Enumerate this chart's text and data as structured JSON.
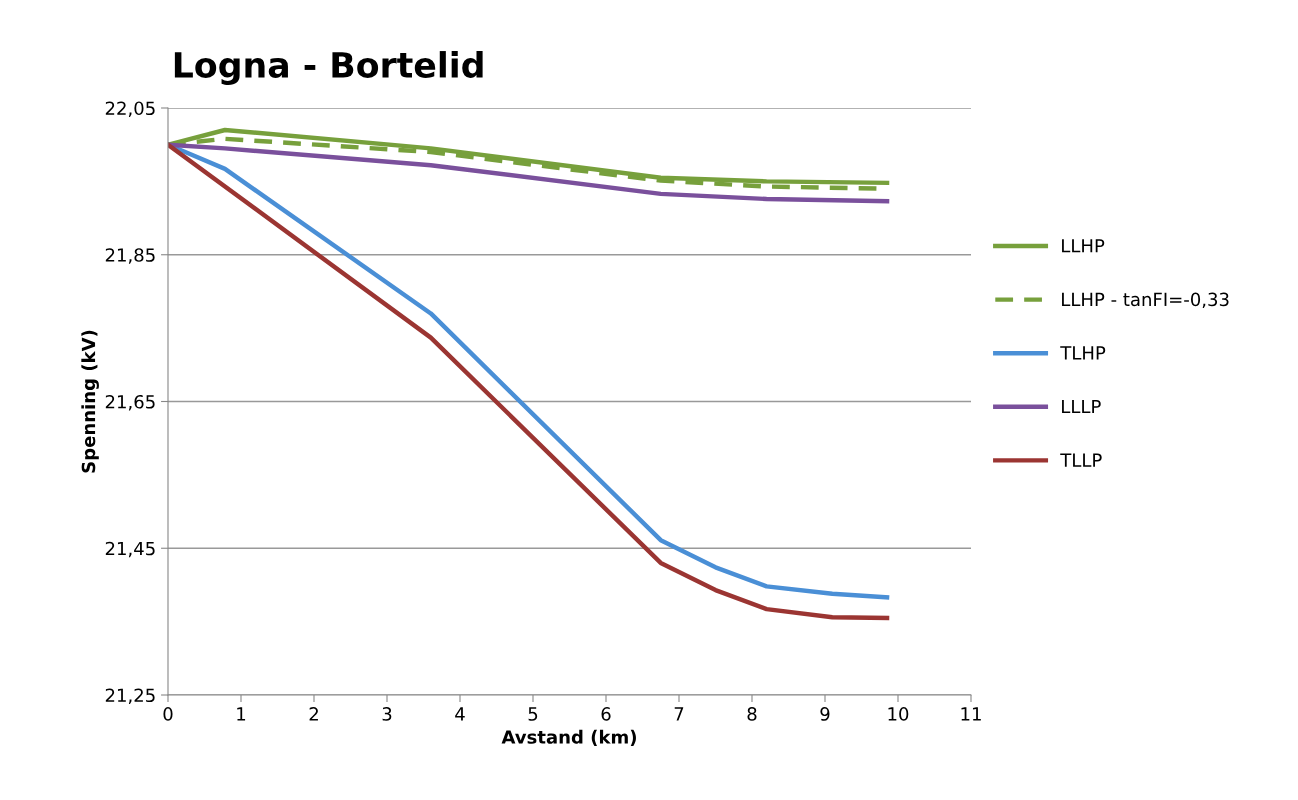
{
  "chart_data": {
    "type": "line",
    "title": "Logna - Bortelid",
    "xlabel": "Avstand (km)",
    "ylabel": "Spenning (kV)",
    "xlim": [
      0,
      11
    ],
    "xticks": [
      0,
      1,
      2,
      3,
      4,
      5,
      6,
      7,
      8,
      9,
      10,
      11
    ],
    "ylim": [
      21.25,
      22.05
    ],
    "yticks": [
      {
        "value": 21.25,
        "label": "21,25"
      },
      {
        "value": 21.45,
        "label": "21,45"
      },
      {
        "value": 21.65,
        "label": "21,65"
      },
      {
        "value": 21.85,
        "label": "21,85"
      },
      {
        "value": 22.05,
        "label": "22,05"
      }
    ],
    "grid": "y",
    "legend": "right",
    "marker": "none",
    "series": [
      {
        "name": "LLHP",
        "color": "#77a03c",
        "line_style": "solid",
        "x": [
          0,
          0.78,
          3.6,
          6.75,
          8.2,
          9.85
        ],
        "values": [
          22.0,
          22.02,
          21.995,
          21.955,
          21.95,
          21.948
        ]
      },
      {
        "name": "LLHP - tanFI=-0,33",
        "color": "#77a03c",
        "line_style": "dashed",
        "x": [
          0,
          0.78,
          3.6,
          6.75,
          8.2,
          9.85
        ],
        "values": [
          22.0,
          22.008,
          21.99,
          21.951,
          21.943,
          21.94
        ]
      },
      {
        "name": "TLHP",
        "color": "#4a8fd6",
        "line_style": "solid",
        "x": [
          0,
          0.78,
          3.6,
          6.75,
          7.5,
          8.2,
          9.1,
          9.85
        ],
        "values": [
          22.0,
          21.967,
          21.77,
          21.461,
          21.424,
          21.398,
          21.388,
          21.383
        ]
      },
      {
        "name": "LLLP",
        "color": "#7a509c",
        "line_style": "solid",
        "x": [
          0,
          0.78,
          3.6,
          6.75,
          8.2,
          9.85
        ],
        "values": [
          22.0,
          21.995,
          21.972,
          21.933,
          21.926,
          21.923
        ]
      },
      {
        "name": "TLLP",
        "color": "#9b3532",
        "line_style": "solid",
        "x": [
          0,
          3.6,
          6.75,
          7.5,
          8.2,
          9.1,
          9.85
        ],
        "values": [
          22.0,
          21.737,
          21.43,
          21.393,
          21.367,
          21.356,
          21.355
        ]
      }
    ]
  }
}
